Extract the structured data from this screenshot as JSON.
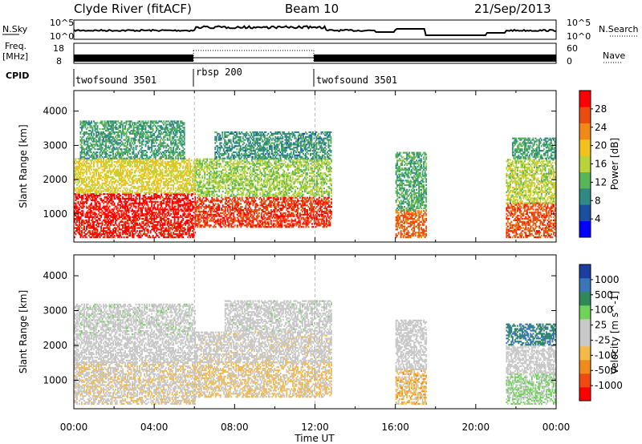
{
  "header": {
    "station": "Clyde River (fitACF)",
    "beam": "Beam 10",
    "date": "21/Sep/2013"
  },
  "noise_panel": {
    "left_label": "N.Sky",
    "right_label": "N.Search",
    "left_ticks": [
      "10^5",
      "10^0"
    ],
    "right_ticks": [
      "10^5",
      "10^0"
    ]
  },
  "freq_panel": {
    "left_label_1": "Freq.",
    "left_label_2": "[MHz]",
    "left_ticks": [
      "18",
      "8"
    ],
    "right_label": "Nave",
    "right_ticks": [
      "60",
      "0"
    ]
  },
  "cpid_panel": {
    "label": "CPID",
    "segments": [
      {
        "name": "twofsound 3501",
        "start_hour": 0,
        "end_hour": 6
      },
      {
        "name": "rbsp 200",
        "start_hour": 6,
        "end_hour": 12
      },
      {
        "name": "twofsound 3501",
        "start_hour": 12,
        "end_hour": 24
      }
    ]
  },
  "x_axis": {
    "label": "Time UT",
    "ticks": [
      "00:00",
      "04:00",
      "08:00",
      "12:00",
      "16:00",
      "20:00",
      "00:00"
    ]
  },
  "chart_data": [
    {
      "type": "heatmap",
      "title": "",
      "ylabel": "Slant Range [km]",
      "xlabel": "",
      "xlim": [
        0,
        24
      ],
      "ylim": [
        180,
        4600
      ],
      "yticks": [
        "1000",
        "2000",
        "3000",
        "4000"
      ],
      "colorbar": {
        "label": "Power [dB]",
        "ticks": [
          "28",
          "24",
          "20",
          "16",
          "12",
          "8",
          "4"
        ],
        "colors": [
          "#0000ff",
          "#1c4e9e",
          "#2f8a86",
          "#58b558",
          "#b9d43a",
          "#f3c11c",
          "#f08a14",
          "#ea4b0f",
          "#ff0000"
        ],
        "range": [
          0,
          30
        ]
      },
      "blocks": [
        {
          "t0": 0.0,
          "t1": 6.0,
          "r0": 300,
          "r1": 1600,
          "level": 28
        },
        {
          "t0": 0.0,
          "t1": 6.0,
          "r0": 1600,
          "r1": 2600,
          "level": 17
        },
        {
          "t0": 0.3,
          "t1": 5.5,
          "r0": 2600,
          "r1": 3700,
          "level": 10
        },
        {
          "t0": 6.0,
          "t1": 12.8,
          "r0": 600,
          "r1": 1500,
          "level": 26
        },
        {
          "t0": 6.0,
          "t1": 12.8,
          "r0": 1500,
          "r1": 2600,
          "level": 14
        },
        {
          "t0": 7.0,
          "t1": 12.8,
          "r0": 2600,
          "r1": 3400,
          "level": 9
        },
        {
          "t0": 16.0,
          "t1": 17.5,
          "r0": 300,
          "r1": 1100,
          "level": 24
        },
        {
          "t0": 16.0,
          "t1": 17.5,
          "r0": 1100,
          "r1": 2800,
          "level": 11
        },
        {
          "t0": 21.5,
          "t1": 24.0,
          "r0": 300,
          "r1": 1300,
          "level": 25
        },
        {
          "t0": 21.5,
          "t1": 24.0,
          "r0": 1300,
          "r1": 2600,
          "level": 15
        },
        {
          "t0": 21.8,
          "t1": 24.0,
          "r0": 2600,
          "r1": 3200,
          "level": 10
        }
      ]
    },
    {
      "type": "heatmap",
      "title": "",
      "ylabel": "Slant Range [km]",
      "xlabel": "Time UT",
      "xlim": [
        0,
        24
      ],
      "ylim": [
        180,
        4600
      ],
      "yticks": [
        "1000",
        "2000",
        "3000",
        "4000"
      ],
      "colorbar": {
        "label": "Velocity [m s^-1]",
        "ticks": [
          "1000",
          "500",
          "100",
          "25",
          "-25",
          "-100",
          "-500",
          "-1000"
        ],
        "colors": [
          "#ff0000",
          "#f04a12",
          "#f08a1c",
          "#f5b947",
          "#c8c8c8",
          "#c8c8c8",
          "#6fd35a",
          "#2f8a5a",
          "#3a76b8",
          "#1c3ea0"
        ],
        "range": [
          -1200,
          1200
        ]
      },
      "blocks": [
        {
          "t0": 0.0,
          "t1": 6.0,
          "r0": 300,
          "r1": 1500,
          "level": -150
        },
        {
          "t0": 0.0,
          "t1": 6.0,
          "r0": 1500,
          "r1": 2300,
          "level": 0
        },
        {
          "t0": 0.0,
          "t1": 6.0,
          "r0": 2300,
          "r1": 3200,
          "level": 60
        },
        {
          "t0": 6.0,
          "t1": 12.8,
          "r0": 500,
          "r1": 1500,
          "level": -250
        },
        {
          "t0": 6.0,
          "t1": 12.8,
          "r0": 1500,
          "r1": 2400,
          "level": -60
        },
        {
          "t0": 7.5,
          "t1": 12.8,
          "r0": 2400,
          "r1": 3300,
          "level": 40
        },
        {
          "t0": 16.0,
          "t1": 17.5,
          "r0": 300,
          "r1": 1300,
          "level": -350
        },
        {
          "t0": 16.0,
          "t1": 17.5,
          "r0": 1300,
          "r1": 2700,
          "level": 0
        },
        {
          "t0": 21.5,
          "t1": 24.0,
          "r0": 300,
          "r1": 1200,
          "level": 250
        },
        {
          "t0": 21.5,
          "t1": 24.0,
          "r0": 1200,
          "r1": 2000,
          "level": 0
        },
        {
          "t0": 21.5,
          "t1": 24.0,
          "r0": 2000,
          "r1": 2600,
          "level": 700
        }
      ]
    }
  ]
}
